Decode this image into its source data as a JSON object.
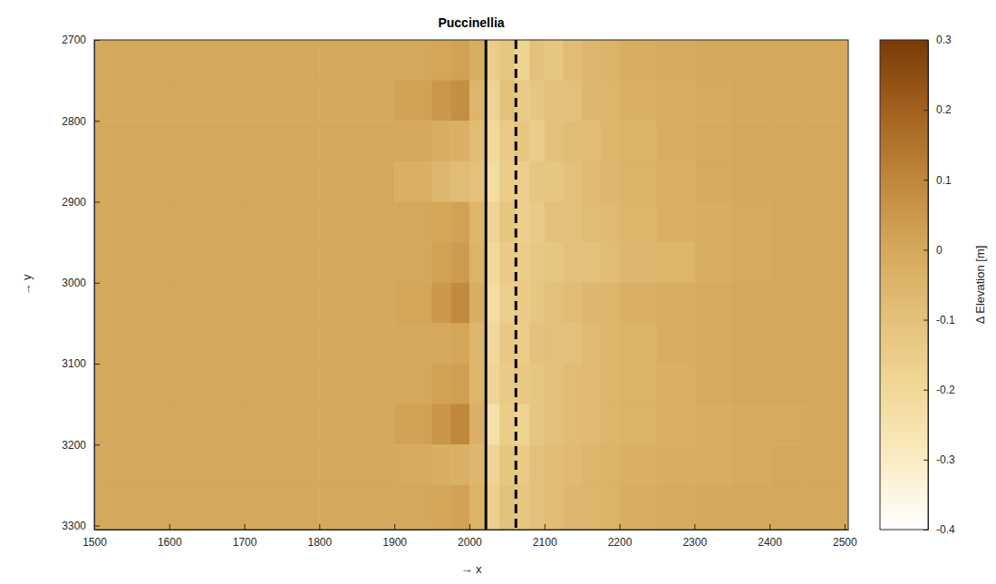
{
  "chart_data": {
    "type": "heatmap",
    "title": "Puccinellia",
    "x_label": "→ x",
    "y_label": "→ y",
    "xlim": [
      1500,
      2505
    ],
    "ylim": [
      2700,
      3305
    ],
    "xticks": [
      1500,
      1600,
      1700,
      1800,
      1900,
      2000,
      2100,
      2200,
      2300,
      2400,
      2500
    ],
    "yticks": [
      2700,
      2800,
      2900,
      3000,
      3100,
      3200,
      3300
    ],
    "x_edges": [
      1500,
      1600,
      1700,
      1800,
      1900,
      1950,
      1975,
      2000,
      2020,
      2040,
      2060,
      2080,
      2100,
      2125,
      2150,
      2175,
      2200,
      2250,
      2300,
      2350,
      2400,
      2450,
      2505
    ],
    "y_edges": [
      2700,
      2750,
      2800,
      2850,
      2900,
      2950,
      3000,
      3050,
      3100,
      3150,
      3200,
      3250,
      3305
    ],
    "values": [
      [
        0,
        0,
        0,
        0,
        0,
        0.01,
        0.02,
        -0.02,
        -0.15,
        -0.12,
        -0.18,
        -0.1,
        -0.12,
        -0.08,
        -0.06,
        -0.04,
        -0.02,
        -0.01,
        0,
        0,
        0,
        0
      ],
      [
        0,
        0,
        0,
        0,
        0.02,
        0.05,
        0.08,
        -0.05,
        -0.18,
        -0.1,
        -0.14,
        -0.12,
        -0.1,
        -0.1,
        -0.06,
        -0.05,
        -0.03,
        -0.02,
        -0.01,
        0,
        0,
        0
      ],
      [
        0,
        0,
        0,
        0,
        0,
        -0.02,
        -0.03,
        -0.08,
        -0.2,
        -0.14,
        -0.12,
        -0.15,
        -0.1,
        -0.08,
        -0.08,
        -0.05,
        -0.04,
        -0.02,
        -0.01,
        0,
        0,
        0
      ],
      [
        0,
        0,
        0,
        0,
        -0.03,
        -0.06,
        -0.08,
        -0.1,
        -0.22,
        -0.15,
        -0.16,
        -0.12,
        -0.12,
        -0.1,
        -0.07,
        -0.06,
        -0.04,
        -0.03,
        -0.01,
        0,
        0,
        0
      ],
      [
        0,
        0,
        0,
        0,
        0,
        0.01,
        0.02,
        -0.05,
        -0.18,
        -0.12,
        -0.16,
        -0.14,
        -0.1,
        -0.1,
        -0.08,
        -0.07,
        -0.05,
        -0.03,
        -0.02,
        -0.01,
        0,
        0
      ],
      [
        0,
        0,
        0,
        0,
        0,
        0.02,
        0.04,
        -0.04,
        -0.2,
        -0.14,
        -0.15,
        -0.13,
        -0.12,
        -0.1,
        -0.1,
        -0.08,
        -0.06,
        -0.05,
        -0.02,
        -0.01,
        0,
        0
      ],
      [
        0,
        0,
        0,
        0,
        0.01,
        0.05,
        0.09,
        -0.02,
        -0.22,
        -0.16,
        -0.14,
        -0.12,
        -0.1,
        -0.08,
        -0.06,
        -0.05,
        -0.03,
        -0.02,
        -0.01,
        0,
        0,
        0
      ],
      [
        0,
        0,
        0,
        0,
        0,
        0,
        0.01,
        -0.06,
        -0.2,
        -0.13,
        -0.15,
        -0.1,
        -0.1,
        -0.1,
        -0.07,
        -0.05,
        -0.04,
        -0.02,
        -0.01,
        0,
        0,
        0
      ],
      [
        0,
        0,
        0,
        0,
        0,
        0.02,
        0.03,
        -0.05,
        -0.18,
        -0.14,
        -0.13,
        -0.12,
        -0.1,
        -0.08,
        -0.07,
        -0.05,
        -0.04,
        -0.03,
        -0.01,
        0,
        0,
        0
      ],
      [
        0,
        0,
        0,
        0,
        0.02,
        0.06,
        0.1,
        -0.03,
        -0.24,
        -0.15,
        -0.18,
        -0.12,
        -0.1,
        -0.08,
        -0.07,
        -0.05,
        -0.04,
        -0.03,
        -0.02,
        -0.01,
        -0.01,
        0
      ],
      [
        0,
        0,
        0,
        0,
        -0.01,
        -0.02,
        -0.03,
        -0.06,
        -0.18,
        -0.12,
        -0.14,
        -0.1,
        -0.08,
        -0.07,
        -0.05,
        -0.04,
        -0.03,
        -0.02,
        -0.02,
        -0.01,
        0,
        0
      ],
      [
        0,
        0,
        0,
        0,
        0,
        0.01,
        0.02,
        -0.04,
        -0.16,
        -0.1,
        -0.12,
        -0.1,
        -0.08,
        -0.06,
        -0.05,
        -0.04,
        -0.02,
        -0.01,
        0,
        0,
        0,
        0
      ]
    ],
    "colorbar": {
      "label": "Δ Elevation [m]",
      "range": [
        -0.4,
        0.3
      ],
      "ticks": [
        -0.4,
        -0.3,
        -0.2,
        -0.1,
        0,
        0.1,
        0.2,
        0.3
      ]
    },
    "vlines": [
      {
        "x": 2022,
        "line_style": "solid",
        "color": "#000000"
      },
      {
        "x": 2062,
        "line_style": "dashed",
        "color": "#000000"
      }
    ]
  }
}
